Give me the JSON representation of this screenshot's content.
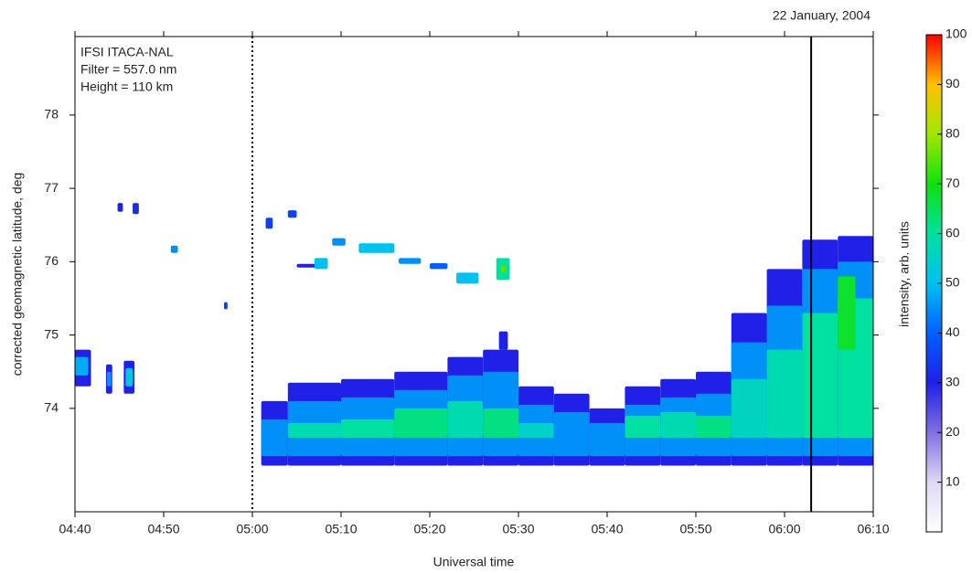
{
  "chart_data": {
    "type": "heatmap",
    "title": "22 January, 2004",
    "annotations": [
      "IFSI   ITACA-NAL",
      "Filter = 557.0 nm",
      "Height = 110 km"
    ],
    "xlabel": "Universal time",
    "ylabel": "corrected geomagnetic latitude, deg",
    "colorbar_label": "intensity, arb. units",
    "xlim": [
      280,
      370
    ],
    "xticks": [
      {
        "value": 280,
        "label": "04:40"
      },
      {
        "value": 290,
        "label": "04:50"
      },
      {
        "value": 300,
        "label": "05:00"
      },
      {
        "value": 310,
        "label": "05:10"
      },
      {
        "value": 320,
        "label": "05:20"
      },
      {
        "value": 330,
        "label": "05:30"
      },
      {
        "value": 340,
        "label": "05:40"
      },
      {
        "value": 350,
        "label": "05:50"
      },
      {
        "value": 360,
        "label": "06:00"
      },
      {
        "value": 370,
        "label": "06:10"
      }
    ],
    "ylim": [
      72.59,
      79.07
    ],
    "yticks": [
      74,
      75,
      76,
      77,
      78
    ],
    "clim": [
      0,
      100
    ],
    "cticks": [
      10,
      20,
      30,
      40,
      50,
      60,
      70,
      80,
      90,
      100
    ],
    "colormap": [
      "#ffffff",
      "#e0d8f4",
      "#8070e0",
      "#2020e8",
      "#0060ff",
      "#00c0f0",
      "#00e0a0",
      "#10e010",
      "#a0e800",
      "#ffc000",
      "#ff0000"
    ],
    "markers": [
      {
        "value": 300,
        "style": "dotted"
      },
      {
        "value": 363,
        "style": "solid"
      }
    ],
    "patches": [
      [
        280,
        281.8,
        74.3,
        74.8,
        30
      ],
      [
        280,
        281.5,
        74.45,
        74.7,
        48
      ],
      [
        283.5,
        284.2,
        74.2,
        74.6,
        30
      ],
      [
        283.6,
        284.1,
        74.3,
        74.5,
        45
      ],
      [
        285.5,
        286.7,
        74.2,
        74.65,
        30
      ],
      [
        285.7,
        286.5,
        74.3,
        74.55,
        52
      ],
      [
        284.8,
        285.4,
        76.68,
        76.8,
        30
      ],
      [
        286.5,
        287.2,
        76.65,
        76.8,
        32
      ],
      [
        290.8,
        291.6,
        76.12,
        76.22,
        45
      ],
      [
        296.8,
        297.2,
        75.35,
        75.45,
        35
      ],
      [
        301.5,
        302.3,
        76.45,
        76.6,
        35
      ],
      [
        304,
        305,
        76.6,
        76.7,
        35
      ],
      [
        305,
        308,
        75.92,
        75.97,
        30
      ],
      [
        307,
        308.5,
        75.9,
        76.05,
        50
      ],
      [
        309,
        310.5,
        76.22,
        76.32,
        45
      ],
      [
        312,
        316,
        76.12,
        76.25,
        50
      ],
      [
        316.5,
        319,
        75.97,
        76.05,
        45
      ],
      [
        320,
        322,
        75.9,
        75.98,
        40
      ],
      [
        323,
        325.5,
        75.7,
        75.85,
        50
      ],
      [
        327.5,
        329,
        75.75,
        76.05,
        60
      ],
      [
        328,
        328.6,
        75.85,
        75.95,
        75
      ],
      [
        301,
        304,
        73.22,
        74.1,
        30
      ],
      [
        301,
        304,
        73.35,
        73.85,
        45
      ],
      [
        304,
        310,
        73.22,
        74.35,
        30
      ],
      [
        304,
        310,
        73.35,
        74.1,
        45
      ],
      [
        304,
        310,
        73.6,
        73.8,
        58
      ],
      [
        310,
        316,
        73.22,
        74.4,
        30
      ],
      [
        310,
        316,
        73.35,
        74.15,
        45
      ],
      [
        310,
        316,
        73.6,
        73.85,
        60
      ],
      [
        316,
        322,
        73.22,
        74.5,
        30
      ],
      [
        316,
        322,
        73.35,
        74.25,
        45
      ],
      [
        316,
        322,
        73.6,
        74.0,
        62
      ],
      [
        322,
        326,
        73.22,
        74.7,
        30
      ],
      [
        322,
        326,
        73.35,
        74.45,
        45
      ],
      [
        322,
        326,
        73.6,
        74.1,
        58
      ],
      [
        326,
        330,
        73.22,
        74.8,
        30
      ],
      [
        326,
        330,
        73.35,
        74.5,
        45
      ],
      [
        326,
        330,
        73.6,
        74.0,
        62
      ],
      [
        327.8,
        328.8,
        74.8,
        75.05,
        30
      ],
      [
        330,
        334,
        73.22,
        74.3,
        30
      ],
      [
        330,
        334,
        73.35,
        74.05,
        45
      ],
      [
        330,
        334,
        73.6,
        73.8,
        55
      ],
      [
        334,
        338,
        73.22,
        74.2,
        30
      ],
      [
        334,
        338,
        73.35,
        73.95,
        45
      ],
      [
        338,
        342,
        73.22,
        74.0,
        30
      ],
      [
        338,
        342,
        73.35,
        73.8,
        45
      ],
      [
        342,
        346,
        73.22,
        74.3,
        30
      ],
      [
        342,
        346,
        73.35,
        74.05,
        45
      ],
      [
        342,
        346,
        73.6,
        73.9,
        60
      ],
      [
        346,
        350,
        73.22,
        74.4,
        30
      ],
      [
        346,
        350,
        73.35,
        74.15,
        45
      ],
      [
        346,
        350,
        73.6,
        73.95,
        58
      ],
      [
        350,
        354,
        73.22,
        74.5,
        30
      ],
      [
        350,
        354,
        73.35,
        74.2,
        45
      ],
      [
        350,
        354,
        73.6,
        73.9,
        62
      ],
      [
        354,
        358,
        73.22,
        75.3,
        30
      ],
      [
        354,
        358,
        73.35,
        74.9,
        45
      ],
      [
        354,
        358,
        73.6,
        74.4,
        56
      ],
      [
        358,
        362,
        73.22,
        75.9,
        30
      ],
      [
        358,
        362,
        73.35,
        75.4,
        45
      ],
      [
        358,
        362,
        73.6,
        74.8,
        58
      ],
      [
        362,
        366,
        73.22,
        76.3,
        30
      ],
      [
        362,
        366,
        73.35,
        75.9,
        45
      ],
      [
        362,
        366,
        73.6,
        75.3,
        60
      ],
      [
        366,
        370,
        73.22,
        76.35,
        30
      ],
      [
        366,
        370,
        73.35,
        76.0,
        45
      ],
      [
        366,
        370,
        73.6,
        75.5,
        60
      ],
      [
        366,
        368,
        74.8,
        75.8,
        68
      ]
    ]
  }
}
